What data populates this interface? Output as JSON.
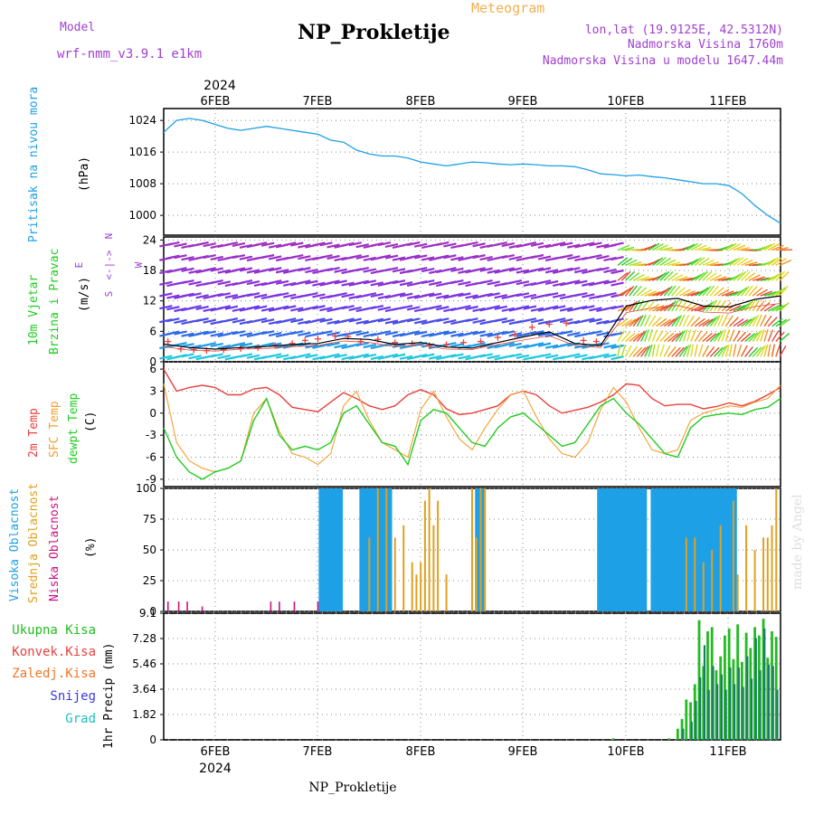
{
  "header": {
    "model_label": "Model",
    "model_name": "wrf-nmm_v3.9.1 e1km",
    "meteogram_label": "Meteogram",
    "station": "NP_Prokletije",
    "lonlat": "lon,lat (19.9125E, 42.5312N)",
    "elevation": "Nadmorska Visina 1760m",
    "model_elevation": "Nadmorska Visina u modelu 1647.44m",
    "credit": "made by Angel",
    "footer_station": "NP_Prokletije"
  },
  "time_axis": {
    "year": "2024",
    "days": [
      "6FEB",
      "7FEB",
      "8FEB",
      "9FEB",
      "10FEB",
      "11FEB"
    ]
  },
  "colors": {
    "pressure": "#1ea0e6",
    "temp2m": "#e8423c",
    "sfc_temp": "#f0a030",
    "dewpoint": "#22cc22",
    "high_cloud": "#1ea0e6",
    "mid_cloud": "#e0a020",
    "low_cloud": "#cc1080",
    "total_precip": "#22bb22",
    "conv_precip": "#e8423c",
    "frozen_precip": "#f07828",
    "snow": "#3a3ae0",
    "graupel": "#20c0c0",
    "purple_text": "#a040d0"
  },
  "chart_data": [
    {
      "type": "line",
      "panel": "pressure",
      "side_label": "Pritisak na nivou mora",
      "ylabel": "(hPa)",
      "yticks": [
        "1000",
        "1008",
        "1016",
        "1024"
      ],
      "ylim": [
        995,
        1027
      ],
      "series": [
        {
          "name": "",
          "x_hours": [
            0,
            3,
            6,
            9,
            12,
            15,
            18,
            21,
            24,
            27,
            30,
            33,
            36,
            39,
            42,
            45,
            48,
            51,
            54,
            57,
            60,
            63,
            66,
            69,
            72,
            75,
            78,
            81,
            84,
            87,
            90,
            93,
            96,
            99,
            102,
            105,
            108,
            111,
            114,
            117,
            120,
            123,
            126,
            129,
            132,
            135,
            138,
            141,
            144
          ],
          "values": [
            1021,
            1024,
            1024.5,
            1024,
            1023,
            1022,
            1021.5,
            1022,
            1022.5,
            1022,
            1021.5,
            1021,
            1020.5,
            1019,
            1018.5,
            1016.5,
            1015.5,
            1015,
            1015,
            1014.5,
            1013.5,
            1013,
            1012.5,
            1013,
            1013.5,
            1013.3,
            1013,
            1012.8,
            1013,
            1012.8,
            1012.5,
            1012.5,
            1012.3,
            1011.5,
            1010.5,
            1010.3,
            1010,
            1010.2,
            1009.8,
            1009.5,
            1009,
            1008.5,
            1008,
            1008,
            1007.5,
            1005.5,
            1002.5,
            1000,
            998
          ]
        }
      ]
    },
    {
      "type": "line",
      "panel": "wind",
      "side_label_1": "10m Vjetar",
      "side_label_2": "Brzina i Pravac",
      "ylabel": "(m/s)",
      "yticks": [
        "0",
        "6",
        "12",
        "18",
        "24"
      ],
      "ylim": [
        0,
        24.6
      ],
      "compass": [
        "N",
        "E",
        "S",
        "W"
      ],
      "series": [
        {
          "name": "",
          "x_hours": [
            0,
            6,
            12,
            18,
            24,
            30,
            36,
            42,
            48,
            54,
            60,
            66,
            72,
            78,
            84,
            90,
            96,
            102,
            108,
            114,
            120,
            126,
            132,
            138,
            144
          ],
          "values": [
            3.5,
            2.8,
            2.5,
            2.8,
            3.0,
            3.4,
            3.6,
            4.6,
            4.4,
            3.4,
            3.8,
            2.9,
            2.7,
            3.8,
            4.9,
            5.9,
            3.6,
            3.2,
            11.0,
            12.1,
            12.5,
            11.0,
            10.8,
            12.3,
            13.0
          ]
        },
        {
          "name": "",
          "x_hours": [
            0,
            6,
            12,
            18,
            24,
            30,
            36,
            42,
            48,
            54,
            60,
            66,
            72,
            78,
            84,
            90,
            96,
            102,
            108,
            114,
            120,
            126,
            132,
            138,
            144
          ],
          "values": [
            3.0,
            2.3,
            2.1,
            2.5,
            2.6,
            3.0,
            3.2,
            4.1,
            3.8,
            3.0,
            3.3,
            2.5,
            2.4,
            3.4,
            4.3,
            5.1,
            3.2,
            2.8,
            9.7,
            10.6,
            11.1,
            9.8,
            9.6,
            10.9,
            11.5
          ]
        }
      ]
    },
    {
      "type": "line",
      "panel": "temperature",
      "side_label_1": "2m Temp",
      "side_label_2": "SFC Temp",
      "side_label_3": "dewpt Temp",
      "ylabel": "(C)",
      "yticks": [
        "-9",
        "-6",
        "-3",
        "0",
        "3",
        "6"
      ],
      "ylim": [
        -10,
        7
      ],
      "x_hours": [
        0,
        3,
        6,
        9,
        12,
        15,
        18,
        21,
        24,
        27,
        30,
        33,
        36,
        39,
        42,
        45,
        48,
        51,
        54,
        57,
        60,
        63,
        66,
        69,
        72,
        75,
        78,
        81,
        84,
        87,
        90,
        93,
        96,
        99,
        102,
        105,
        108,
        111,
        114,
        117,
        120,
        123,
        126,
        129,
        132,
        135,
        138,
        141,
        144
      ],
      "series": [
        {
          "name": "2m Temp",
          "values": [
            6.0,
            3.0,
            3.5,
            3.8,
            3.5,
            2.5,
            2.5,
            3.3,
            3.5,
            2.5,
            0.8,
            0.5,
            0.2,
            1.5,
            2.8,
            2.0,
            1.0,
            0.5,
            1.0,
            2.5,
            3.2,
            2.5,
            0.6,
            -0.2,
            0.0,
            0.5,
            1.0,
            2.5,
            3.0,
            2.5,
            1.0,
            0.0,
            0.4,
            0.8,
            1.5,
            2.5,
            4.0,
            3.8,
            2.0,
            1.0,
            1.2,
            1.2,
            0.6,
            0.9,
            1.4,
            1.0,
            1.6,
            2.5,
            3.5
          ]
        },
        {
          "name": "SFC Temp",
          "values": [
            4.0,
            -4.0,
            -6.5,
            -7.5,
            -8.0,
            -7.5,
            -6.5,
            0.0,
            2.0,
            -2.5,
            -5.5,
            -6.0,
            -7.0,
            -5.5,
            1.0,
            3.0,
            -1.0,
            -4.0,
            -5.0,
            -6.0,
            0.5,
            3.0,
            -0.5,
            -3.5,
            -5.0,
            -2.0,
            0.5,
            2.5,
            3.0,
            -0.5,
            -3.5,
            -5.5,
            -6.0,
            -4.0,
            0.5,
            3.5,
            1.5,
            -2.0,
            -5.0,
            -5.5,
            -5.0,
            -1.0,
            0.0,
            0.5,
            1.0,
            0.8,
            1.5,
            2.0,
            3.8
          ]
        },
        {
          "name": "dewpt Temp",
          "values": [
            -2.0,
            -6.0,
            -8.0,
            -9.0,
            -8.0,
            -7.5,
            -6.5,
            -1.0,
            2.0,
            -3.0,
            -5.0,
            -4.5,
            -5.0,
            -4.0,
            0.0,
            1.0,
            -1.5,
            -4.0,
            -4.5,
            -7.0,
            -1.0,
            0.5,
            0.0,
            -2.0,
            -4.0,
            -4.5,
            -2.0,
            -0.5,
            0.0,
            -1.5,
            -3.0,
            -4.5,
            -4.0,
            -1.5,
            1.0,
            2.0,
            0.0,
            -1.5,
            -3.5,
            -5.5,
            -6.0,
            -2.0,
            -0.5,
            -0.2,
            0.0,
            -0.2,
            0.5,
            0.8,
            2.0
          ]
        }
      ]
    },
    {
      "type": "bar",
      "panel": "cloud",
      "side_label_1": "Visoka Oblacnost",
      "side_label_2": "Srednja Oblacnost",
      "side_label_3": "Niska Oblacnost",
      "ylabel": "(%)",
      "yticks": [
        "0",
        "25",
        "50",
        "75",
        "100"
      ],
      "ylim": [
        0,
        100
      ],
      "series": [
        {
          "name": "Visoka Oblacnost",
          "intervals_hours": [
            [
              36.5,
              41.5
            ],
            [
              46,
              53
            ],
            [
              73,
              74.5
            ],
            [
              101.5,
              112.5
            ],
            [
              114,
              126.5
            ],
            [
              127,
              133.5
            ]
          ],
          "value": 100
        },
        {
          "name": "Srednja Oblacnost",
          "x_hours": [
            48,
            50,
            52,
            54,
            56,
            58,
            59,
            60,
            61,
            62,
            63,
            64,
            66,
            72,
            73,
            74,
            75,
            122,
            124,
            126,
            128,
            130,
            133,
            134,
            136,
            138,
            140,
            141,
            142,
            143
          ],
          "values": [
            60,
            100,
            100,
            60,
            70,
            40,
            30,
            40,
            90,
            100,
            70,
            90,
            30,
            100,
            60,
            100,
            100,
            60,
            60,
            40,
            50,
            70,
            90,
            30,
            70,
            50,
            60,
            60,
            70,
            100
          ]
        },
        {
          "name": "Niska Oblacnost",
          "x_hours": [
            1,
            3.5,
            5.5,
            9,
            25,
            27,
            30.5,
            36
          ],
          "values": [
            8,
            8,
            8,
            4,
            8,
            8,
            8,
            8
          ]
        }
      ]
    },
    {
      "type": "bar",
      "panel": "precipitation",
      "side_labels": [
        "Ukupna Kisa",
        "Konvek.Kisa",
        "Zaledj.Kisa",
        "Snijeg",
        "Grad"
      ],
      "ylabel": "1hr Precip (mm)",
      "yticks": [
        "0",
        "1.82",
        "3.64",
        "5.46",
        "7.28",
        "9.1"
      ],
      "ylim": [
        0,
        9.1
      ],
      "series": [
        {
          "name": "Ukupna Kisa",
          "x_hours": [
            105,
            118,
            120,
            121,
            122,
            123,
            124,
            125,
            126,
            127,
            128,
            129,
            130,
            131,
            132,
            133,
            134,
            135,
            136,
            137,
            138,
            139,
            140,
            141,
            142,
            143
          ],
          "values": [
            0.1,
            0.1,
            0.8,
            1.5,
            2.9,
            2.7,
            4.0,
            8.6,
            5.3,
            7.8,
            8.1,
            5.0,
            6.0,
            7.5,
            8.0,
            5.8,
            8.3,
            5.6,
            7.7,
            6.6,
            8.1,
            7.5,
            8.7,
            5.9,
            7.8,
            7.4
          ]
        },
        {
          "name": "Snijeg",
          "x_hours": [
            121,
            123,
            124,
            125,
            126,
            127,
            128,
            129,
            130,
            131,
            132,
            133,
            134,
            135,
            136,
            137,
            138,
            139,
            140,
            141,
            142,
            143
          ],
          "values": [
            0.8,
            1.3,
            2.8,
            4.5,
            6.8,
            3.6,
            5.3,
            4.0,
            4.7,
            3.6,
            5.2,
            4.0,
            5.2,
            3.8,
            6.0,
            4.4,
            7.3,
            5.0,
            8.0,
            5.4,
            5.3,
            3.6
          ]
        }
      ]
    }
  ]
}
